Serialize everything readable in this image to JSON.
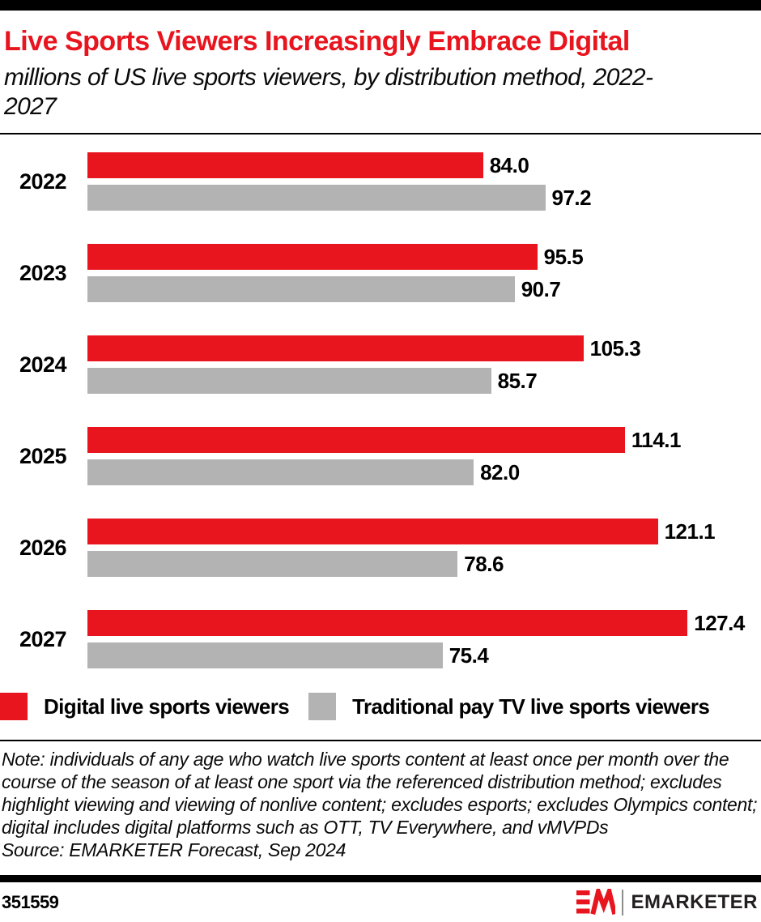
{
  "header": {
    "title": "Live Sports Viewers Increasingly Embrace Digital",
    "subtitle": "millions of US live sports viewers, by distribution method, 2022-2027"
  },
  "chart_data": {
    "type": "bar",
    "orientation": "horizontal",
    "title": "Live Sports Viewers Increasingly Embrace Digital",
    "subtitle": "millions of US live sports viewers, by distribution method, 2022-2027",
    "units": "millions",
    "categories": [
      "2022",
      "2023",
      "2024",
      "2025",
      "2026",
      "2027"
    ],
    "series": [
      {
        "name": "Digital live sports viewers",
        "color": "#e8141e",
        "values": [
          84.0,
          95.5,
          105.3,
          114.1,
          121.1,
          127.4
        ]
      },
      {
        "name": "Traditional pay TV live sports viewers",
        "color": "#b3b3b3",
        "values": [
          97.2,
          90.7,
          85.7,
          82.0,
          78.6,
          75.4
        ]
      }
    ],
    "value_label_decimals": 1,
    "xlim": [
      0,
      143
    ],
    "grid": false,
    "legend_position": "bottom"
  },
  "note": {
    "text": "Note: individuals of any age who watch live sports content at least once per month over the course of the season of at least one sport via the referenced distribution method; excludes highlight viewing and viewing of nonlive content; excludes esports; excludes Olympics content; digital includes digital platforms such as OTT, TV Everywhere, and vMVPDs",
    "source": "Source: EMARKETER Forecast, Sep 2024"
  },
  "footer": {
    "chart_id": "351559",
    "brand": "EMARKETER",
    "logo_color": "#e8141e",
    "brand_text_color": "#231f20"
  },
  "colors": {
    "accent_red": "#e8141e",
    "bar_gray": "#b3b3b3",
    "bar_black": "#000000"
  }
}
